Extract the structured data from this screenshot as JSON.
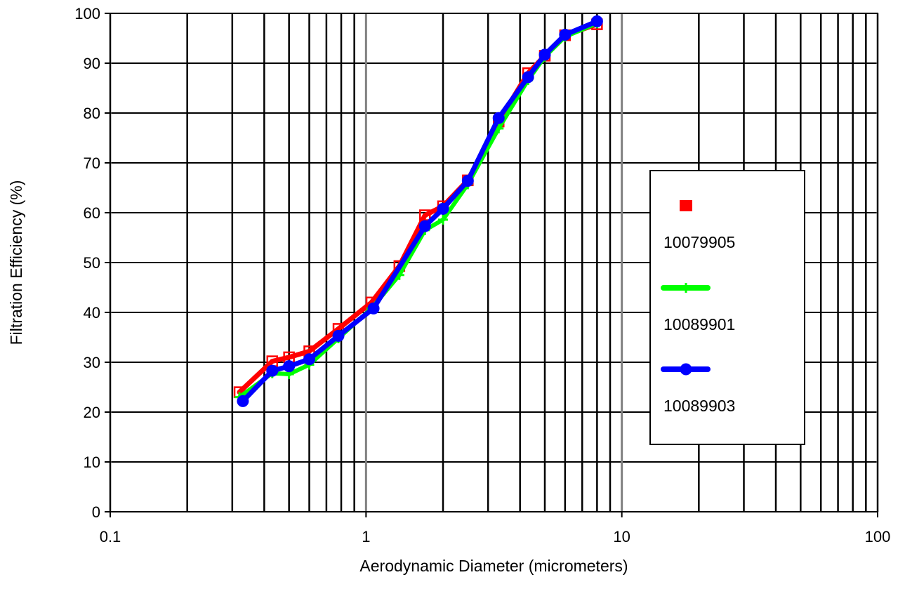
{
  "chart_data": {
    "type": "line",
    "xlabel": "Aerodynamic Diameter (micrometers)",
    "ylabel": "Filtration Efficiency (%)",
    "xscale": "log",
    "xlim": [
      0.1,
      100
    ],
    "ylim": [
      0,
      100
    ],
    "grid": true,
    "legend_position": "right",
    "x_tick_labels": [
      "0.1",
      "1",
      "10",
      "100"
    ],
    "y_tick_labels": [
      "0",
      "10",
      "20",
      "30",
      "40",
      "50",
      "60",
      "70",
      "80",
      "90",
      "100"
    ],
    "series": [
      {
        "name": "10079905",
        "color": "#ff0000",
        "marker": "square",
        "x": [
          0.32,
          0.43,
          0.5,
          0.6,
          0.78,
          1.05,
          1.35,
          1.7,
          2.0,
          2.5,
          3.3,
          4.3,
          5.0,
          6.0,
          8.0
        ],
        "y": [
          24.0,
          30.2,
          31.0,
          32.2,
          36.7,
          42.0,
          49.3,
          59.5,
          61.3,
          66.5,
          78.3,
          88.0,
          91.5,
          95.6,
          97.8
        ]
      },
      {
        "name": "10089901",
        "color": "#00ff00",
        "marker": "plus",
        "x": [
          0.32,
          0.43,
          0.5,
          0.6,
          0.78,
          1.05,
          1.35,
          1.7,
          2.0,
          2.5,
          3.3,
          4.3,
          5.0,
          6.0,
          8.0
        ],
        "y": [
          23.0,
          27.8,
          27.6,
          29.5,
          34.8,
          40.8,
          47.5,
          56.5,
          58.6,
          65.7,
          76.9,
          86.6,
          91.3,
          95.3,
          98.0
        ]
      },
      {
        "name": "10089903",
        "color": "#0000ff",
        "marker": "circle",
        "x": [
          0.33,
          0.43,
          0.5,
          0.6,
          0.78,
          1.07,
          1.7,
          2.0,
          2.5,
          3.3,
          4.3,
          5.0,
          6.0,
          8.0
        ],
        "y": [
          22.2,
          28.3,
          29.2,
          30.6,
          35.3,
          40.8,
          57.3,
          60.8,
          66.4,
          79.0,
          87.2,
          91.7,
          95.7,
          98.4
        ]
      }
    ]
  }
}
